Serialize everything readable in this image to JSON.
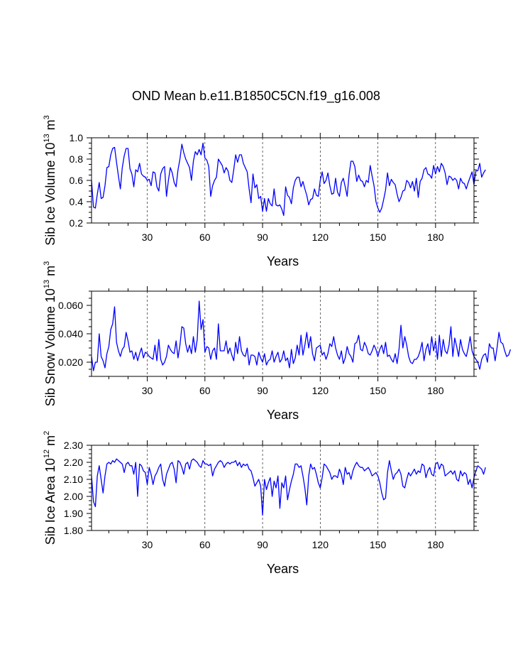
{
  "figure": {
    "title": "OND Mean b.e11.B1850C5CN.f19_g16.008"
  },
  "chart_data": [
    {
      "type": "line",
      "name": "sib-ice-volume",
      "ylabel_base": "Sib Ice Volume 10",
      "ylabel_exp": "13",
      "ylabel_unit": " m",
      "ylabel_unit_exp": "3",
      "xlabel": "Years",
      "xlim": [
        1,
        200
      ],
      "ylim": [
        0.2,
        1.0
      ],
      "xticks": [
        30,
        60,
        90,
        120,
        150,
        180
      ],
      "xtick_labels": [
        "30",
        "60",
        "90",
        "120",
        "150",
        "180"
      ],
      "yticks": [
        0.2,
        0.4,
        0.6,
        0.8,
        1.0
      ],
      "ytick_labels": [
        "0.2",
        "0.4",
        "0.6",
        "0.8",
        "1.0"
      ],
      "ygrid_minor": 0.05,
      "line_color": "#0000ff",
      "series": [
        {
          "name": "Sib Ice Volume",
          "x_start": 1,
          "values": [
            0.6,
            0.35,
            0.34,
            0.47,
            0.58,
            0.43,
            0.44,
            0.55,
            0.72,
            0.73,
            0.84,
            0.9,
            0.91,
            0.77,
            0.64,
            0.52,
            0.72,
            0.83,
            0.9,
            0.9,
            0.71,
            0.66,
            0.54,
            0.7,
            0.68,
            0.76,
            0.66,
            0.64,
            0.63,
            0.6,
            0.61,
            0.55,
            0.68,
            0.67,
            0.54,
            0.5,
            0.66,
            0.71,
            0.73,
            0.45,
            0.6,
            0.72,
            0.67,
            0.58,
            0.54,
            0.7,
            0.8,
            0.94,
            0.86,
            0.8,
            0.76,
            0.72,
            0.6,
            0.78,
            0.87,
            0.84,
            0.89,
            0.84,
            0.95,
            0.81,
            0.79,
            0.73,
            0.45,
            0.55,
            0.6,
            0.63,
            0.8,
            0.77,
            0.74,
            0.67,
            0.72,
            0.69,
            0.6,
            0.58,
            0.7,
            0.84,
            0.77,
            0.84,
            0.84,
            0.76,
            0.72,
            0.68,
            0.52,
            0.39,
            0.66,
            0.53,
            0.56,
            0.43,
            0.45,
            0.31,
            0.43,
            0.31,
            0.43,
            0.38,
            0.36,
            0.52,
            0.37,
            0.36,
            0.37,
            0.33,
            0.27,
            0.54,
            0.46,
            0.44,
            0.38,
            0.53,
            0.6,
            0.63,
            0.63,
            0.54,
            0.59,
            0.52,
            0.46,
            0.37,
            0.42,
            0.43,
            0.52,
            0.46,
            0.45,
            0.6,
            0.68,
            0.57,
            0.6,
            0.67,
            0.55,
            0.47,
            0.48,
            0.62,
            0.49,
            0.45,
            0.58,
            0.62,
            0.54,
            0.45,
            0.65,
            0.78,
            0.78,
            0.73,
            0.59,
            0.65,
            0.6,
            0.59,
            0.54,
            0.6,
            0.58,
            0.74,
            0.64,
            0.55,
            0.4,
            0.34,
            0.3,
            0.34,
            0.42,
            0.51,
            0.67,
            0.55,
            0.61,
            0.58,
            0.56,
            0.47,
            0.4,
            0.44,
            0.5,
            0.51,
            0.6,
            0.58,
            0.53,
            0.59,
            0.5,
            0.62,
            0.44,
            0.59,
            0.62,
            0.7,
            0.72,
            0.66,
            0.65,
            0.62,
            0.74,
            0.66,
            0.73,
            0.68,
            0.76,
            0.73,
            0.67,
            0.56,
            0.64,
            0.63,
            0.6,
            0.62,
            0.6,
            0.52,
            0.62,
            0.58,
            0.57,
            0.52,
            0.58,
            0.63,
            0.68,
            0.56,
            0.69,
            0.69,
            0.76,
            0.63,
            0.67,
            0.7
          ]
        }
      ]
    },
    {
      "type": "line",
      "name": "sib-snow-volume",
      "ylabel_base": "Sib Snow Volume 10",
      "ylabel_exp": "13",
      "ylabel_unit": " m",
      "ylabel_unit_exp": "3",
      "xlabel": "Years",
      "xlim": [
        1,
        200
      ],
      "ylim": [
        0.01,
        0.07
      ],
      "xticks": [
        30,
        60,
        90,
        120,
        150,
        180
      ],
      "xtick_labels": [
        "30",
        "60",
        "90",
        "120",
        "150",
        "180"
      ],
      "yticks": [
        0.02,
        0.04,
        0.06
      ],
      "ytick_labels": [
        "0.020",
        "0.040",
        "0.060"
      ],
      "ygrid_minor": 0.005,
      "line_color": "#0000ff",
      "series": [
        {
          "name": "Sib Snow Volume",
          "x_start": 1,
          "values": [
            0.024,
            0.014,
            0.02,
            0.02,
            0.04,
            0.024,
            0.021,
            0.016,
            0.026,
            0.031,
            0.043,
            0.047,
            0.059,
            0.034,
            0.028,
            0.024,
            0.029,
            0.031,
            0.041,
            0.035,
            0.027,
            0.028,
            0.022,
            0.027,
            0.021,
            0.026,
            0.03,
            0.023,
            0.027,
            0.026,
            0.024,
            0.023,
            0.022,
            0.032,
            0.021,
            0.036,
            0.022,
            0.018,
            0.02,
            0.024,
            0.032,
            0.029,
            0.027,
            0.026,
            0.035,
            0.023,
            0.032,
            0.045,
            0.044,
            0.033,
            0.027,
            0.032,
            0.026,
            0.038,
            0.027,
            0.036,
            0.063,
            0.043,
            0.05,
            0.027,
            0.031,
            0.03,
            0.022,
            0.028,
            0.03,
            0.022,
            0.047,
            0.028,
            0.028,
            0.028,
            0.035,
            0.026,
            0.03,
            0.025,
            0.021,
            0.034,
            0.026,
            0.038,
            0.028,
            0.025,
            0.024,
            0.03,
            0.018,
            0.025,
            0.025,
            0.024,
            0.018,
            0.027,
            0.023,
            0.02,
            0.026,
            0.018,
            0.021,
            0.022,
            0.028,
            0.02,
            0.024,
            0.027,
            0.02,
            0.022,
            0.028,
            0.021,
            0.023,
            0.016,
            0.029,
            0.019,
            0.023,
            0.032,
            0.025,
            0.039,
            0.025,
            0.032,
            0.041,
            0.03,
            0.038,
            0.026,
            0.021,
            0.03,
            0.031,
            0.032,
            0.025,
            0.027,
            0.022,
            0.026,
            0.033,
            0.031,
            0.038,
            0.03,
            0.025,
            0.022,
            0.028,
            0.019,
            0.023,
            0.031,
            0.026,
            0.024,
            0.02,
            0.033,
            0.034,
            0.039,
            0.029,
            0.028,
            0.034,
            0.031,
            0.026,
            0.025,
            0.028,
            0.032,
            0.029,
            0.024,
            0.029,
            0.032,
            0.026,
            0.034,
            0.024,
            0.025,
            0.022,
            0.02,
            0.026,
            0.019,
            0.029,
            0.046,
            0.03,
            0.038,
            0.032,
            0.024,
            0.02,
            0.019,
            0.022,
            0.022,
            0.024,
            0.028,
            0.034,
            0.021,
            0.029,
            0.033,
            0.025,
            0.038,
            0.028,
            0.035,
            0.022,
            0.039,
            0.024,
            0.036,
            0.028,
            0.026,
            0.032,
            0.045,
            0.024,
            0.037,
            0.031,
            0.024,
            0.036,
            0.029,
            0.026,
            0.024,
            0.03,
            0.038,
            0.028,
            0.024,
            0.022,
            0.02,
            0.015,
            0.022,
            0.025,
            0.026,
            0.02,
            0.033,
            0.03,
            0.03,
            0.021,
            0.03,
            0.041,
            0.034,
            0.033,
            0.028,
            0.024,
            0.025,
            0.029
          ]
        }
      ]
    },
    {
      "type": "line",
      "name": "sib-ice-area",
      "ylabel_base": "Sib Ice Area 10",
      "ylabel_exp": "12",
      "ylabel_unit": " m",
      "ylabel_unit_exp": "2",
      "xlabel": "Years",
      "xlim": [
        1,
        200
      ],
      "ylim": [
        1.8,
        2.3
      ],
      "xticks": [
        30,
        60,
        90,
        120,
        150,
        180
      ],
      "xtick_labels": [
        "30",
        "60",
        "90",
        "120",
        "150",
        "180"
      ],
      "yticks": [
        1.8,
        1.9,
        2.0,
        2.1,
        2.2,
        2.3
      ],
      "ytick_labels": [
        "1.80",
        "1.90",
        "2.00",
        "2.10",
        "2.20",
        "2.30"
      ],
      "ygrid_minor": 0.025,
      "line_color": "#0000ff",
      "series": [
        {
          "name": "Sib Ice Area",
          "x_start": 1,
          "values": [
            2.12,
            1.97,
            1.94,
            2.12,
            2.18,
            2.1,
            2.02,
            2.12,
            2.19,
            2.2,
            2.19,
            2.21,
            2.2,
            2.22,
            2.21,
            2.2,
            2.19,
            2.14,
            2.19,
            2.2,
            2.18,
            2.18,
            2.13,
            2.2,
            2.0,
            2.19,
            2.18,
            2.15,
            2.14,
            2.07,
            2.17,
            2.13,
            2.07,
            2.12,
            2.14,
            2.17,
            2.19,
            2.1,
            2.06,
            2.13,
            2.16,
            2.19,
            2.2,
            2.16,
            2.08,
            2.21,
            2.2,
            2.17,
            2.13,
            2.19,
            2.2,
            2.16,
            2.21,
            2.22,
            2.21,
            2.2,
            2.18,
            2.17,
            2.21,
            2.19,
            2.19,
            2.18,
            2.19,
            2.12,
            2.16,
            2.18,
            2.2,
            2.21,
            2.2,
            2.17,
            2.19,
            2.2,
            2.19,
            2.2,
            2.2,
            2.21,
            2.18,
            2.2,
            2.17,
            2.19,
            2.18,
            2.19,
            2.16,
            2.15,
            2.11,
            2.06,
            2.08,
            2.1,
            2.06,
            1.89,
            2.1,
            2.04,
            2.08,
            2.11,
            2.0,
            2.09,
            2.05,
            2.12,
            1.93,
            2.08,
            2.05,
            2.12,
            1.98,
            2.04,
            2.09,
            2.13,
            2.19,
            2.19,
            2.17,
            2.18,
            2.12,
            2.05,
            1.95,
            2.12,
            2.19,
            2.16,
            2.17,
            2.13,
            2.08,
            2.05,
            2.11,
            2.19,
            2.18,
            2.16,
            2.14,
            2.1,
            2.12,
            2.12,
            2.11,
            2.16,
            2.13,
            2.07,
            2.17,
            2.13,
            2.14,
            2.1,
            2.15,
            2.18,
            2.2,
            2.18,
            2.17,
            2.17,
            2.15,
            2.16,
            2.17,
            2.15,
            2.12,
            2.13,
            2.14,
            2.12,
            2.08,
            2.02,
            1.98,
            1.99,
            2.14,
            2.21,
            2.15,
            2.1,
            2.13,
            2.14,
            2.16,
            2.13,
            2.06,
            2.05,
            2.1,
            2.14,
            2.12,
            2.14,
            2.16,
            2.13,
            2.15,
            2.14,
            2.19,
            2.18,
            2.11,
            2.15,
            2.17,
            2.13,
            2.12,
            2.19,
            2.2,
            2.16,
            2.19,
            2.18,
            2.12,
            2.13,
            2.14,
            2.15,
            2.13,
            2.15,
            2.1,
            2.09,
            2.15,
            2.12,
            2.14,
            2.13,
            2.07,
            2.1,
            2.05,
            2.11,
            2.15,
            2.18,
            2.17,
            2.16,
            2.13,
            2.17
          ]
        }
      ]
    }
  ]
}
